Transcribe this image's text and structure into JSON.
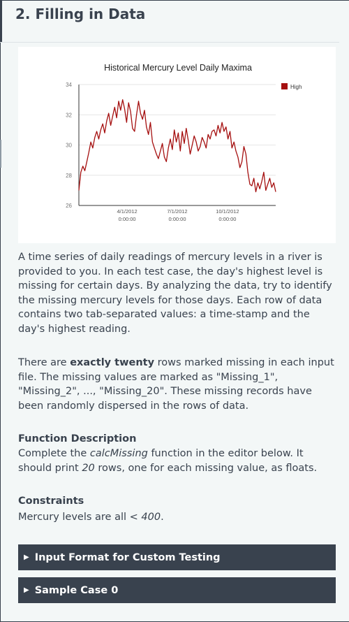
{
  "section": {
    "title": "2. Filling in Data"
  },
  "chart_data": {
    "type": "line",
    "title": "Historical Mercury Level Daily Maxima",
    "ylim": [
      26,
      34
    ],
    "yticks": [
      26,
      28,
      30,
      32,
      34
    ],
    "xtick_labels": [
      [
        "4/1/2012",
        "0:00:00"
      ],
      [
        "7/1/2012",
        "0:00:00"
      ],
      [
        "10/1/2012",
        "0:00:00"
      ]
    ],
    "legend": {
      "label": "High",
      "position": "top-right"
    },
    "grid": true,
    "series": [
      {
        "name": "High",
        "color": "#a50f0f",
        "values": [
          27.0,
          28.2,
          28.6,
          28.3,
          28.9,
          29.5,
          30.2,
          29.8,
          30.5,
          30.9,
          30.4,
          31.0,
          31.4,
          30.8,
          31.6,
          32.1,
          31.3,
          31.9,
          32.5,
          31.8,
          32.9,
          32.3,
          33.0,
          32.4,
          31.5,
          32.8,
          32.2,
          31.1,
          30.9,
          32.0,
          32.9,
          32.1,
          31.7,
          32.3,
          31.2,
          30.7,
          31.5,
          30.2,
          29.8,
          29.4,
          29.1,
          29.6,
          30.1,
          29.2,
          28.9,
          29.8,
          30.4,
          29.7,
          31.0,
          30.2,
          30.8,
          29.6,
          30.9,
          30.1,
          31.1,
          30.3,
          29.4,
          30.0,
          30.6,
          30.2,
          29.6,
          29.9,
          30.5,
          30.2,
          29.8,
          30.7,
          30.4,
          30.9,
          31.0,
          30.6,
          31.3,
          30.8,
          31.5,
          30.9,
          31.2,
          30.4,
          30.9,
          29.8,
          30.2,
          29.6,
          29.2,
          28.5,
          28.9,
          29.9,
          29.4,
          28.2,
          27.4,
          27.3,
          27.8,
          26.9,
          27.5,
          27.1,
          27.6,
          28.2,
          27.0,
          27.4,
          27.8,
          27.2,
          27.5,
          26.9
        ]
      }
    ]
  },
  "text": {
    "p1": "A time series of daily readings of mercury levels in a river is provided to you. In each test case, the day's highest level is missing for certain days. By analyzing the data, try to identify the missing mercury levels for those days. Each row of data contains two tab-separated values: a time-stamp and the day's highest reading.",
    "p2_pre": "There are ",
    "p2_bold": "exactly twenty",
    "p2_post": " rows marked missing in each input file. The missing values are marked as \"Missing_1\", \"Missing_2\", ..., \"Missing_20\". These missing records have been randomly dispersed in the rows of data.",
    "func_heading": "Function Description",
    "p3_pre": "Complete the ",
    "p3_func": "calcMissing",
    "p3_mid": " function in the editor below. It should print ",
    "p3_num": "20",
    "p3_post": " rows, one for each missing value, as floats.",
    "cons_heading": "Constraints",
    "p4_pre": "Mercury levels are all ",
    "p4_em": "< 400",
    "p4_post": "."
  },
  "accordions": [
    {
      "label": "Input Format for Custom Testing",
      "icon": "triangle-right-icon"
    },
    {
      "label": "Sample Case 0",
      "icon": "triangle-right-icon"
    }
  ]
}
